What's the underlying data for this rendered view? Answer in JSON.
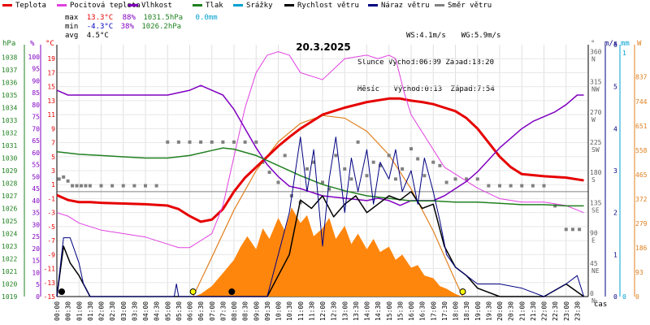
{
  "legend": [
    {
      "label": "Teplota",
      "color": "#e60000"
    },
    {
      "label": "Pocitová teplota",
      "color": "#e040e0"
    },
    {
      "label": "Vlhkost",
      "color": "#8000c0"
    },
    {
      "label": "Tlak",
      "color": "#208020"
    },
    {
      "label": "Srážky",
      "color": "#00a0d0"
    },
    {
      "label": "Rychlost větru",
      "color": "#000000"
    },
    {
      "label": "Náraz větru",
      "color": "#000080"
    },
    {
      "label": "Směr větru",
      "color": "#808080"
    }
  ],
  "stats": {
    "max_label": "max",
    "min_label": "min",
    "avg_label": "avg",
    "max_temp": "13.3°C",
    "max_hum": "88%",
    "max_press": "1031.5hPa",
    "max_rain": "0.0mm",
    "min_temp": "-4.3°C",
    "min_hum": "38%",
    "min_press": "1026.2hPa",
    "avg_temp": "4.5°C"
  },
  "wind": {
    "ws": "WS:4.1m/s",
    "wg": "WG:5.9m/s"
  },
  "sun": {
    "label": "Slunce",
    "rise": "Východ:06:09",
    "set": "Západ:18:20"
  },
  "moon": {
    "label": "Měsíc",
    "rise": "Východ:0:13",
    "set": "Západ:7:54"
  },
  "date": "20.3.2025",
  "units": {
    "hpa": "hPa",
    "pct": "%",
    "degc": "°C",
    "deg": "°",
    "ms": "m/s",
    "mm": "mm",
    "w": "W",
    "time": "čas"
  },
  "colors": {
    "temp": "#e60000",
    "feels": "#e040e0",
    "hum": "#8000c0",
    "press": "#208020",
    "rain": "#00a0d0",
    "speed": "#000000",
    "gust": "#000080",
    "dir": "#808080",
    "solar": "#ff7f00",
    "solar_theory": "#e08020"
  },
  "chart_data": {
    "type": "line",
    "title": "20.3.2025",
    "x_range_hours": [
      0,
      24
    ],
    "x_ticks": [
      "00:00",
      "00:30",
      "01:00",
      "01:30",
      "02:00",
      "02:30",
      "03:00",
      "03:30",
      "04:00",
      "04:30",
      "05:00",
      "05:30",
      "06:00",
      "06:30",
      "07:00",
      "07:30",
      "08:00",
      "08:30",
      "09:00",
      "09:30",
      "10:00",
      "10:30",
      "11:00",
      "11:30",
      "12:00",
      "12:30",
      "13:00",
      "13:30",
      "14:00",
      "14:30",
      "15:00",
      "15:30",
      "16:00",
      "16:30",
      "17:00",
      "17:30",
      "18:00",
      "18:30",
      "19:00",
      "19:30",
      "20:00",
      "20:30",
      "21:00",
      "21:30",
      "22:00",
      "22:30",
      "23:00",
      "23:30"
    ],
    "axes": {
      "pressure": {
        "range": [
          1019,
          1039
        ],
        "ticks": [
          1019,
          1020,
          1021,
          1022,
          1023,
          1024,
          1025,
          1026,
          1027,
          1028,
          1029,
          1030,
          1031,
          1032,
          1033,
          1034,
          1035,
          1036,
          1037,
          1038
        ]
      },
      "humidity": {
        "range": [
          0,
          105
        ],
        "ticks": [
          0,
          5,
          10,
          15,
          20,
          25,
          30,
          35,
          40,
          45,
          50,
          55,
          60,
          65,
          70,
          75,
          80,
          85,
          90,
          95,
          100
        ]
      },
      "temperature": {
        "range": [
          -15,
          21
        ],
        "ticks": [
          -15,
          -13,
          -11,
          -9,
          -7,
          -5,
          -3,
          -1,
          1,
          3,
          5,
          7,
          9,
          11,
          13,
          15,
          17,
          19
        ]
      },
      "direction": {
        "range": [
          0,
          375
        ],
        "ticks": [
          {
            "v": 360,
            "l": "N"
          },
          {
            "v": 315,
            "l": "NW"
          },
          {
            "v": 270,
            "l": "W"
          },
          {
            "v": 225,
            "l": "SW"
          },
          {
            "v": 180,
            "l": "S"
          },
          {
            "v": 135,
            "l": "SE"
          },
          {
            "v": 90,
            "l": "E"
          },
          {
            "v": 45,
            "l": "NE"
          },
          {
            "v": 0,
            "l": "N"
          }
        ]
      },
      "wind": {
        "range": [
          0,
          6
        ],
        "ticks": [
          0,
          1,
          2,
          3,
          4,
          5,
          6
        ]
      },
      "rain": {
        "range": [
          0,
          1
        ],
        "ticks": [
          0,
          1
        ]
      },
      "solar": {
        "range": [
          0,
          960
        ],
        "ticks": [
          0,
          93,
          186,
          279,
          372,
          465,
          558,
          651,
          744,
          837
        ]
      }
    },
    "series": [
      {
        "name": "Teplota",
        "axis": "temperature",
        "x": [
          0,
          0.5,
          1,
          1.5,
          2,
          3,
          4,
          5,
          5.5,
          6,
          6.5,
          7,
          7.5,
          8,
          8.5,
          9,
          9.5,
          10,
          10.5,
          11,
          11.5,
          12,
          13,
          14,
          15,
          15.5,
          16,
          16.5,
          17,
          17.5,
          18,
          18.5,
          19,
          19.5,
          20,
          20.5,
          21,
          22,
          23,
          23.8
        ],
        "values": [
          -0.5,
          -1.2,
          -1.5,
          -1.5,
          -1.6,
          -1.7,
          -1.8,
          -2,
          -2.5,
          -3.5,
          -4.3,
          -4,
          -2.5,
          0,
          2,
          3.5,
          5,
          6.5,
          7.8,
          9,
          10,
          11,
          12,
          12.8,
          13.3,
          13.3,
          13,
          12.8,
          12.5,
          12,
          11.5,
          10.5,
          9,
          7,
          5,
          3.5,
          2.5,
          2.2,
          2,
          1.6
        ]
      },
      {
        "name": "Pocitová teplota",
        "axis": "temperature",
        "x": [
          0,
          0.5,
          1,
          2,
          3,
          4,
          5,
          5.5,
          6,
          6.5,
          7,
          7.5,
          8,
          8.5,
          9,
          9.5,
          10,
          10.5,
          11,
          12,
          13,
          14,
          14.5,
          15,
          15.3,
          15.7,
          16,
          16.5,
          17,
          17.5,
          18,
          18.5,
          19,
          20,
          21,
          22,
          23,
          23.8
        ],
        "values": [
          -3,
          -3.5,
          -4.5,
          -5.5,
          -6,
          -6.5,
          -7.5,
          -8,
          -8,
          -7,
          -6,
          -2,
          5,
          12,
          17,
          19.5,
          20,
          19.5,
          17,
          16,
          19,
          19.5,
          19,
          19.5,
          19,
          14,
          11,
          8.5,
          6,
          3.5,
          2.5,
          1.5,
          0.5,
          -1,
          -1.5,
          -1.5,
          -2,
          -3
        ]
      },
      {
        "name": "Vlhkost",
        "axis": "humidity",
        "x": [
          0,
          0.5,
          1,
          2,
          3,
          4,
          5,
          6,
          6.5,
          7,
          7.5,
          8,
          8.5,
          9,
          9.5,
          10,
          10.5,
          11,
          12,
          13,
          14,
          14.5,
          15,
          15.5,
          16,
          16.5,
          17,
          17.5,
          18,
          18.5,
          19,
          19.5,
          20,
          20.5,
          21,
          21.5,
          22,
          22.5,
          23,
          23.5,
          23.8
        ],
        "values": [
          86,
          84,
          84,
          84,
          84,
          84,
          84,
          86,
          88,
          86,
          84,
          78,
          70,
          62,
          55,
          50,
          46,
          45,
          42,
          41,
          40,
          41,
          40,
          38,
          40,
          40,
          40,
          42,
          45,
          48,
          52,
          57,
          62,
          66,
          70,
          73,
          75,
          77,
          80,
          84,
          84
        ]
      },
      {
        "name": "Tlak",
        "axis": "pressure",
        "x": [
          0,
          1,
          2,
          3,
          4,
          5,
          6,
          7,
          7.5,
          8,
          9,
          10,
          11,
          12,
          13,
          14,
          15,
          16,
          17,
          18,
          19,
          20,
          21,
          22,
          23,
          23.8
        ],
        "values": [
          1030.5,
          1030.3,
          1030.2,
          1030.1,
          1030.0,
          1030.0,
          1030.2,
          1030.6,
          1030.8,
          1030.7,
          1030.2,
          1029.4,
          1028.6,
          1027.9,
          1027.4,
          1027.0,
          1026.8,
          1026.6,
          1026.6,
          1026.5,
          1026.5,
          1026.4,
          1026.3,
          1026.3,
          1026.2,
          1026.2
        ]
      },
      {
        "name": "Rychlost větru",
        "axis": "wind",
        "x": [
          0,
          0.3,
          0.6,
          1,
          1.2,
          1.5,
          9.5,
          10,
          10.5,
          11,
          11.5,
          12,
          12.5,
          13,
          13.5,
          14,
          14.5,
          15,
          15.5,
          16,
          16.5,
          17,
          17.5,
          18,
          18.5,
          19,
          20,
          21,
          22,
          23,
          23.8
        ],
        "values": [
          0,
          1.2,
          0.8,
          0.5,
          0.3,
          0,
          0,
          0.5,
          1,
          2.3,
          2.1,
          2.4,
          1.9,
          2.2,
          2.4,
          2.0,
          2.2,
          2.4,
          2.3,
          2.5,
          2.1,
          2.2,
          1.2,
          0.7,
          0.5,
          0.2,
          0,
          0,
          0,
          0.3,
          0
        ]
      },
      {
        "name": "Náraz větru",
        "axis": "wind",
        "x": [
          0,
          0.3,
          0.6,
          1,
          1.2,
          1.5,
          5.3,
          5.4,
          5.5,
          9.5,
          10,
          10.5,
          11,
          11.3,
          11.6,
          12,
          12.3,
          12.6,
          13,
          13.3,
          13.6,
          14,
          14.3,
          14.6,
          15,
          15.3,
          15.6,
          16,
          16.3,
          16.6,
          17,
          17.3,
          17.6,
          18,
          18.5,
          19,
          20,
          21,
          22,
          23,
          23.5,
          23.8
        ],
        "values": [
          0,
          1.4,
          1.4,
          0.8,
          0.3,
          0,
          0,
          0.3,
          0,
          0,
          1,
          2,
          3.8,
          2.5,
          3.5,
          1.2,
          2.8,
          3.8,
          2,
          3.3,
          2.5,
          3.5,
          2.2,
          3.2,
          2.8,
          3.5,
          2.5,
          3.0,
          2.2,
          3.3,
          2.5,
          1.8,
          1.0,
          0.7,
          0.5,
          0.3,
          0.3,
          0.2,
          0,
          0.3,
          0.5,
          0
        ]
      },
      {
        "name": "Směr větru",
        "axis": "direction",
        "x": [
          0.1,
          0.3,
          0.5,
          0.7,
          0.9,
          1.1,
          1.3,
          1.5,
          2,
          2.5,
          3,
          3.5,
          4,
          4.5,
          5,
          5.5,
          6,
          6.5,
          7,
          7.5,
          8,
          8.5,
          9,
          9.3,
          9.6,
          10,
          10.3,
          10.6,
          11,
          11.3,
          11.6,
          12,
          12.3,
          12.6,
          13,
          13.3,
          13.6,
          14,
          14.3,
          14.6,
          15,
          15.3,
          15.6,
          16,
          16.3,
          16.6,
          17,
          17.3,
          17.6,
          18,
          18.5,
          19,
          19.5,
          20,
          20.5,
          21,
          21.5,
          22,
          22.5,
          23,
          23.3,
          23.6
        ],
        "values": [
          175,
          178,
          172,
          165,
          165,
          165,
          165,
          165,
          165,
          165,
          165,
          165,
          165,
          165,
          230,
          230,
          230,
          230,
          230,
          230,
          230,
          230,
          230,
          200,
          185,
          170,
          210,
          150,
          140,
          190,
          200,
          170,
          160,
          210,
          190,
          175,
          230,
          180,
          200,
          195,
          210,
          175,
          190,
          220,
          205,
          180,
          200,
          195,
          170,
          175,
          175,
          175,
          165,
          165,
          165,
          165,
          165,
          165,
          135,
          100,
          100,
          100
        ]
      }
    ],
    "solar_measured": {
      "name": "Sluneční záření",
      "axis": "solar",
      "x": [
        6.2,
        6.5,
        7,
        7.5,
        8,
        8.3,
        8.6,
        9,
        9.3,
        9.6,
        10,
        10.3,
        10.6,
        11,
        11.3,
        11.6,
        12,
        12.3,
        12.6,
        13,
        13.3,
        13.6,
        14,
        14.3,
        14.6,
        15,
        15.3,
        15.6,
        16,
        16.3,
        16.6,
        17,
        17.3,
        17.6,
        18,
        18.3
      ],
      "values": [
        0,
        10,
        40,
        90,
        140,
        190,
        230,
        180,
        260,
        220,
        300,
        250,
        340,
        280,
        310,
        230,
        260,
        300,
        220,
        270,
        200,
        240,
        180,
        220,
        170,
        190,
        140,
        160,
        110,
        120,
        80,
        70,
        40,
        30,
        10,
        0
      ]
    },
    "solar_theoretical": {
      "axis": "solar",
      "x": [
        6.15,
        7,
        8,
        9,
        10,
        11,
        12,
        13,
        14,
        15,
        16,
        17,
        18,
        18.33
      ],
      "values": [
        0,
        150,
        330,
        480,
        590,
        660,
        690,
        680,
        630,
        540,
        410,
        250,
        60,
        0
      ]
    },
    "sun_markers": [
      6.15,
      18.33
    ],
    "moon_markers": [
      0.22,
      7.9
    ]
  }
}
